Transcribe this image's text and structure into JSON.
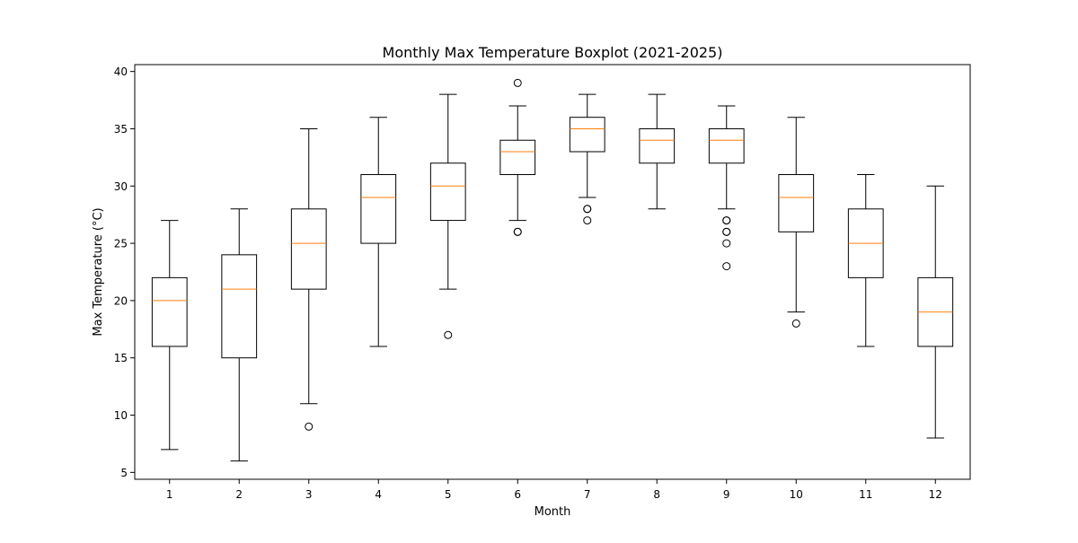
{
  "chart_data": {
    "type": "box",
    "title": "Monthly Max Temperature Boxplot (2021-2025)",
    "xlabel": "Month",
    "ylabel": "Max Temperature (°C)",
    "ylim": [
      4.4,
      40.6
    ],
    "yticks": [
      5,
      10,
      15,
      20,
      25,
      30,
      35,
      40
    ],
    "grid": false,
    "colors": {
      "box": "#000000",
      "median": "#ff7f0e",
      "background": "#ffffff"
    },
    "categories": [
      "1",
      "2",
      "3",
      "4",
      "5",
      "6",
      "7",
      "8",
      "9",
      "10",
      "11",
      "12"
    ],
    "boxes": [
      {
        "category": "1",
        "whisker_low": 7,
        "q1": 16,
        "median": 20,
        "q3": 22,
        "whisker_high": 27,
        "outliers": []
      },
      {
        "category": "2",
        "whisker_low": 6,
        "q1": 15,
        "median": 21,
        "q3": 24,
        "whisker_high": 28,
        "outliers": []
      },
      {
        "category": "3",
        "whisker_low": 11,
        "q1": 21,
        "median": 25,
        "q3": 28,
        "whisker_high": 35,
        "outliers": [
          9
        ]
      },
      {
        "category": "4",
        "whisker_low": 16,
        "q1": 25,
        "median": 29,
        "q3": 31,
        "whisker_high": 36,
        "outliers": []
      },
      {
        "category": "5",
        "whisker_low": 21,
        "q1": 27,
        "median": 30,
        "q3": 32,
        "whisker_high": 38,
        "outliers": [
          17
        ]
      },
      {
        "category": "6",
        "whisker_low": 27,
        "q1": 31,
        "median": 33,
        "q3": 34,
        "whisker_high": 37,
        "outliers": [
          39,
          26,
          26
        ]
      },
      {
        "category": "7",
        "whisker_low": 29,
        "q1": 33,
        "median": 35,
        "q3": 36,
        "whisker_high": 38,
        "outliers": [
          28,
          28,
          27
        ]
      },
      {
        "category": "8",
        "whisker_low": 28,
        "q1": 32,
        "median": 34,
        "q3": 35,
        "whisker_high": 38,
        "outliers": []
      },
      {
        "category": "9",
        "whisker_low": 28,
        "q1": 32,
        "median": 34,
        "q3": 35,
        "whisker_high": 37,
        "outliers": [
          27,
          27,
          26,
          26,
          25,
          23
        ]
      },
      {
        "category": "10",
        "whisker_low": 19,
        "q1": 26,
        "median": 29,
        "q3": 31,
        "whisker_high": 36,
        "outliers": [
          18
        ]
      },
      {
        "category": "11",
        "whisker_low": 16,
        "q1": 22,
        "median": 25,
        "q3": 28,
        "whisker_high": 31,
        "outliers": []
      },
      {
        "category": "12",
        "whisker_low": 8,
        "q1": 16,
        "median": 19,
        "q3": 22,
        "whisker_high": 30,
        "outliers": []
      }
    ]
  }
}
